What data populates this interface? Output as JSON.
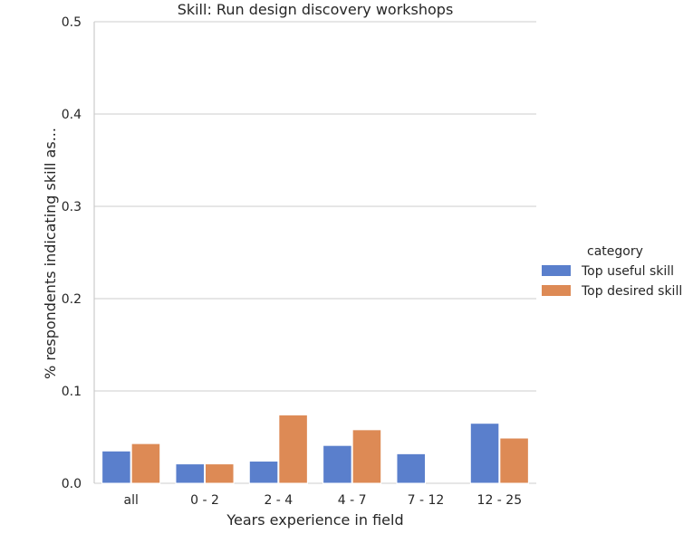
{
  "chart_data": {
    "type": "bar",
    "title": "Skill: Run design discovery workshops",
    "xlabel": "Years experience in field",
    "ylabel": "% respondents indicating skill as...",
    "categories": [
      "all",
      "0 - 2",
      "2 - 4",
      "4 - 7",
      "7 - 12",
      "12 - 25"
    ],
    "series": [
      {
        "name": "Top useful skill",
        "color": "#5a7fcc",
        "values": [
          0.035,
          0.021,
          0.024,
          0.041,
          0.032,
          0.065
        ]
      },
      {
        "name": "Top desired skill",
        "color": "#dd8a55",
        "values": [
          0.043,
          0.021,
          0.074,
          0.058,
          0.0,
          0.049
        ]
      }
    ],
    "ylim": [
      0,
      0.5
    ],
    "yticks": [
      "0.0",
      "0.1",
      "0.2",
      "0.3",
      "0.4",
      "0.5"
    ],
    "grid": "horizontal",
    "legend": {
      "title": "category",
      "placement": "right"
    }
  }
}
